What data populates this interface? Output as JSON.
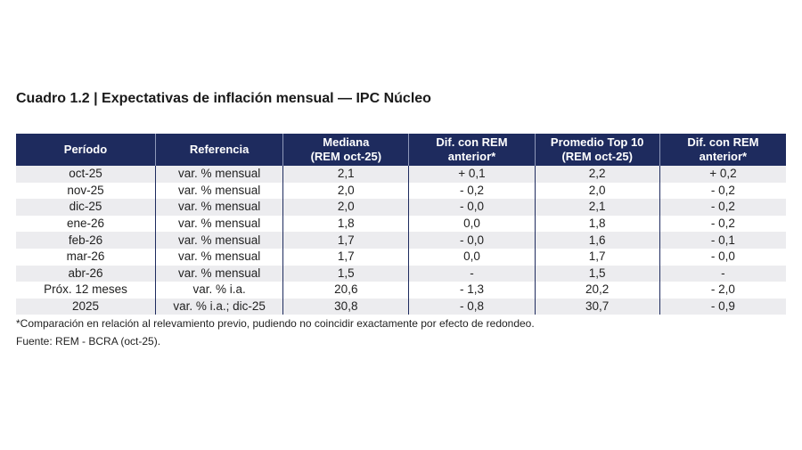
{
  "title": "Cuadro 1.2 | Expectativas de inflación mensual — IPC Núcleo",
  "header": {
    "c0": "Período",
    "c1": "Referencia",
    "c2a": "Mediana",
    "c2b": "(REM oct-25)",
    "c3a": "Dif. con REM",
    "c3b": "anterior*",
    "c4a": "Promedio Top 10",
    "c4b": "(REM oct-25)",
    "c5a": "Dif. con REM",
    "c5b": "anterior*"
  },
  "rows": [
    [
      "oct-25",
      "var. % mensual",
      "2,1",
      "+ 0,1",
      "2,2",
      "+ 0,2"
    ],
    [
      "nov-25",
      "var. % mensual",
      "2,0",
      "- 0,2",
      "2,0",
      "- 0,2"
    ],
    [
      "dic-25",
      "var. % mensual",
      "2,0",
      "- 0,0",
      "2,1",
      "- 0,2"
    ],
    [
      "ene-26",
      "var. % mensual",
      "1,8",
      "0,0",
      "1,8",
      "- 0,2"
    ],
    [
      "feb-26",
      "var. % mensual",
      "1,7",
      "- 0,0",
      "1,6",
      "- 0,1"
    ],
    [
      "mar-26",
      "var. % mensual",
      "1,7",
      "0,0",
      "1,7",
      "- 0,0"
    ],
    [
      "abr-26",
      "var. % mensual",
      "1,5",
      "-",
      "1,5",
      "-"
    ],
    [
      "Próx. 12 meses",
      "var. % i.a.",
      "20,6",
      "- 1,3",
      "20,2",
      "- 2,0"
    ],
    [
      "2025",
      "var. % i.a.; dic-25",
      "30,8",
      "- 0,8",
      "30,7",
      "- 0,9"
    ]
  ],
  "footnote": "*Comparación en relación al relevamiento previo, pudiendo no coincidir exactamente por efecto de redondeo.",
  "source": "Fuente: REM - BCRA (oct-25).",
  "colors": {
    "header_bg": "#1e2b5e",
    "stripe": "#ececef"
  }
}
